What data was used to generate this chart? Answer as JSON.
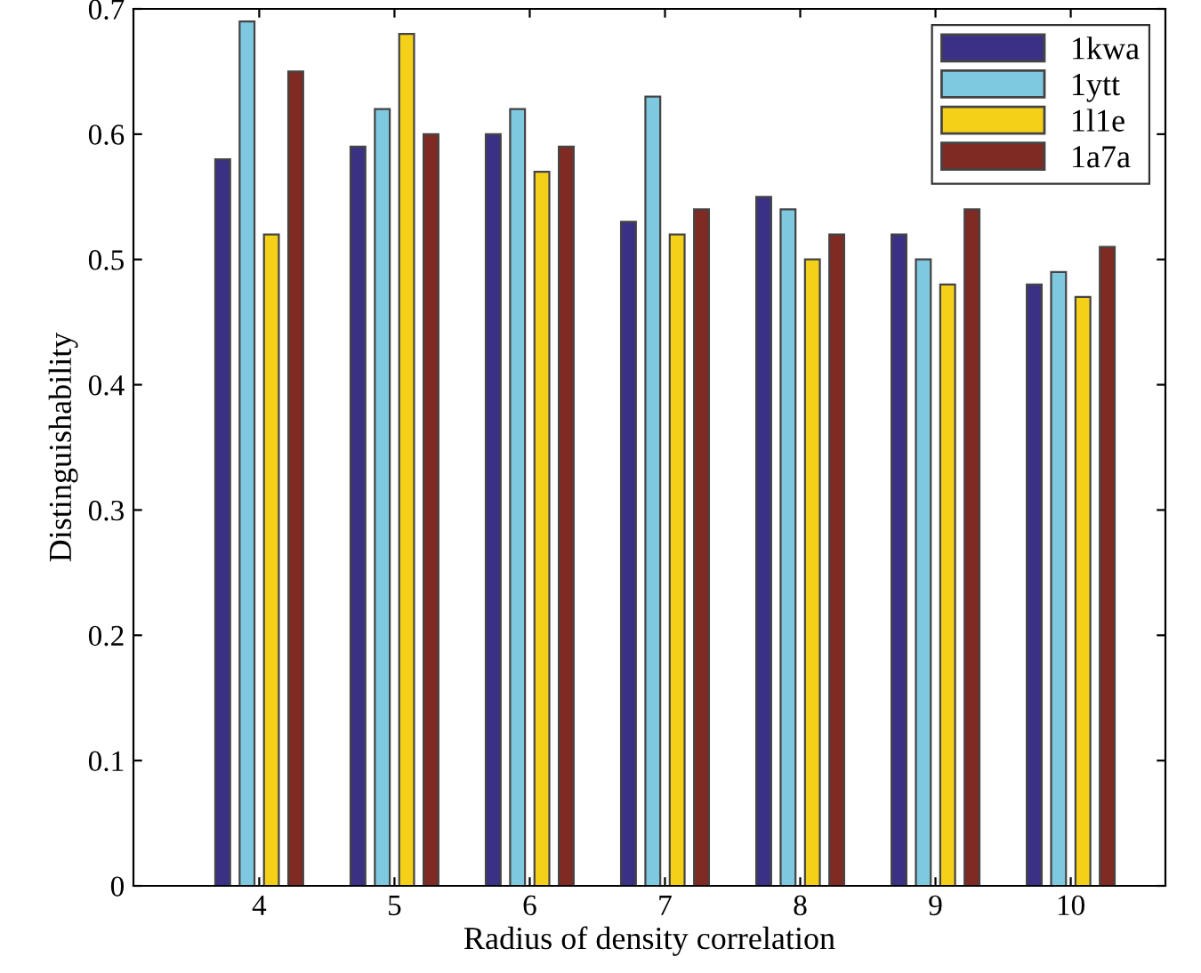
{
  "chart_data": {
    "type": "bar",
    "xlabel": "Radius of density correlation",
    "ylabel": "Distinguishability",
    "categories": [
      "4",
      "5",
      "6",
      "7",
      "8",
      "9",
      "10"
    ],
    "series": [
      {
        "name": "1kwa",
        "color": "#3a3185",
        "values": [
          0.58,
          0.59,
          0.6,
          0.53,
          0.55,
          0.52,
          0.48
        ]
      },
      {
        "name": "1ytt",
        "color": "#7ec8e0",
        "values": [
          0.69,
          0.62,
          0.62,
          0.63,
          0.54,
          0.5,
          0.49
        ]
      },
      {
        "name": "1l1e",
        "color": "#f5d019",
        "values": [
          0.52,
          0.68,
          0.57,
          0.52,
          0.5,
          0.48,
          0.47
        ]
      },
      {
        "name": "1a7a",
        "color": "#7f2a22",
        "values": [
          0.65,
          0.6,
          0.59,
          0.54,
          0.52,
          0.54,
          0.51
        ]
      }
    ],
    "ylim": [
      0,
      0.7
    ],
    "yticks": [
      0,
      0.1,
      0.2,
      0.3,
      0.4,
      0.5,
      0.6,
      0.7
    ],
    "grid": false,
    "legend": "top right"
  }
}
